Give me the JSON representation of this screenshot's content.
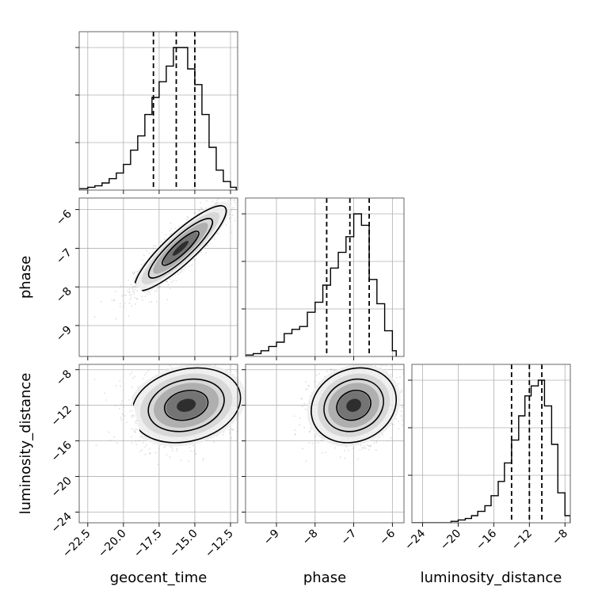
{
  "chart_data": {
    "type": "corner",
    "parameters": [
      "geocent_time",
      "phase",
      "luminosity_distance"
    ],
    "axis_labels": {
      "geocent_time": "geocent_time",
      "phase": "phase",
      "luminosity_distance": "luminosity_distance"
    },
    "ranges": {
      "geocent_time": [
        -23.1,
        -12.0
      ],
      "phase": [
        -9.8,
        -5.7
      ],
      "luminosity_distance": [
        -25.2,
        -7.4
      ]
    },
    "ticks": {
      "geocent_time": {
        "values": [
          -22.5,
          -20.0,
          -17.5,
          -15.0,
          -12.5
        ],
        "labels": [
          "−22.5",
          "−20.0",
          "−17.5",
          "−15.0",
          "−12.5"
        ]
      },
      "phase": {
        "values": [
          -9,
          -8,
          -7,
          -6
        ],
        "labels": [
          "−9",
          "−8",
          "−7",
          "−6"
        ]
      },
      "luminosity_distance": {
        "values": [
          -24,
          -20,
          -16,
          -12,
          -8
        ],
        "labels": [
          "−24",
          "−20",
          "−16",
          "−12",
          "−8"
        ]
      }
    },
    "grid": true,
    "histograms": [
      {
        "param": "geocent_time",
        "quantiles": [
          -17.9,
          -16.3,
          -15.0
        ],
        "edges": [
          -23.1,
          -22.5,
          -22.0,
          -21.5,
          -21.0,
          -20.5,
          -20.0,
          -19.5,
          -19.0,
          -18.5,
          -18.0,
          -17.5,
          -17.0,
          -16.5,
          -16.0,
          -15.5,
          -15.0,
          -14.5,
          -14.0,
          -13.5,
          -13.0,
          -12.5,
          -12.1
        ],
        "counts": [
          0.01,
          0.02,
          0.03,
          0.05,
          0.08,
          0.12,
          0.18,
          0.28,
          0.38,
          0.53,
          0.65,
          0.76,
          0.87,
          1.0,
          1.0,
          0.85,
          0.74,
          0.53,
          0.3,
          0.14,
          0.06,
          0.02
        ]
      },
      {
        "param": "phase",
        "quantiles": [
          -7.7,
          -7.1,
          -6.6
        ],
        "edges": [
          -9.8,
          -9.6,
          -9.4,
          -9.2,
          -9.0,
          -8.8,
          -8.6,
          -8.4,
          -8.2,
          -8.0,
          -7.8,
          -7.6,
          -7.4,
          -7.2,
          -7.0,
          -6.8,
          -6.6,
          -6.4,
          -6.2,
          -6.0,
          -5.9
        ],
        "counts": [
          0.01,
          0.02,
          0.04,
          0.07,
          0.1,
          0.16,
          0.19,
          0.21,
          0.31,
          0.38,
          0.5,
          0.62,
          0.73,
          0.84,
          1.0,
          0.92,
          0.54,
          0.37,
          0.18,
          0.04
        ]
      },
      {
        "param": "luminosity_distance",
        "quantiles": [
          -14.0,
          -12.0,
          -10.6
        ],
        "edges": [
          -25.2,
          -24.5,
          -23.8,
          -23.0,
          -22.2,
          -21.5,
          -20.8,
          -20.0,
          -19.2,
          -18.5,
          -17.8,
          -17.0,
          -16.3,
          -15.5,
          -14.8,
          -14.0,
          -13.2,
          -12.5,
          -11.8,
          -11.0,
          -10.3,
          -9.5,
          -8.8,
          -8.0,
          -7.4
        ],
        "counts": [
          0.0,
          0.0,
          0.0,
          0.0,
          0.0,
          0.0,
          0.01,
          0.02,
          0.03,
          0.05,
          0.08,
          0.12,
          0.19,
          0.29,
          0.42,
          0.58,
          0.75,
          0.89,
          0.96,
          1.0,
          0.82,
          0.55,
          0.21,
          0.05
        ]
      }
    ],
    "pairs": [
      {
        "x": "geocent_time",
        "y": "phase",
        "center": [
          -16.0,
          -7.0
        ],
        "sd": [
          1.6,
          0.55
        ],
        "rho": 0.88
      },
      {
        "x": "geocent_time",
        "y": "luminosity_distance",
        "center": [
          -15.6,
          -12.0
        ],
        "sd": [
          1.9,
          2.1
        ],
        "rho": 0.2
      },
      {
        "x": "phase",
        "y": "luminosity_distance",
        "center": [
          -7.0,
          -12.0
        ],
        "sd": [
          0.55,
          2.1
        ],
        "rho": 0.15
      }
    ]
  },
  "style": {
    "hist_color": "#000000",
    "grid_color": "#b0b0b0",
    "sample_color": "#a0a0a0"
  }
}
